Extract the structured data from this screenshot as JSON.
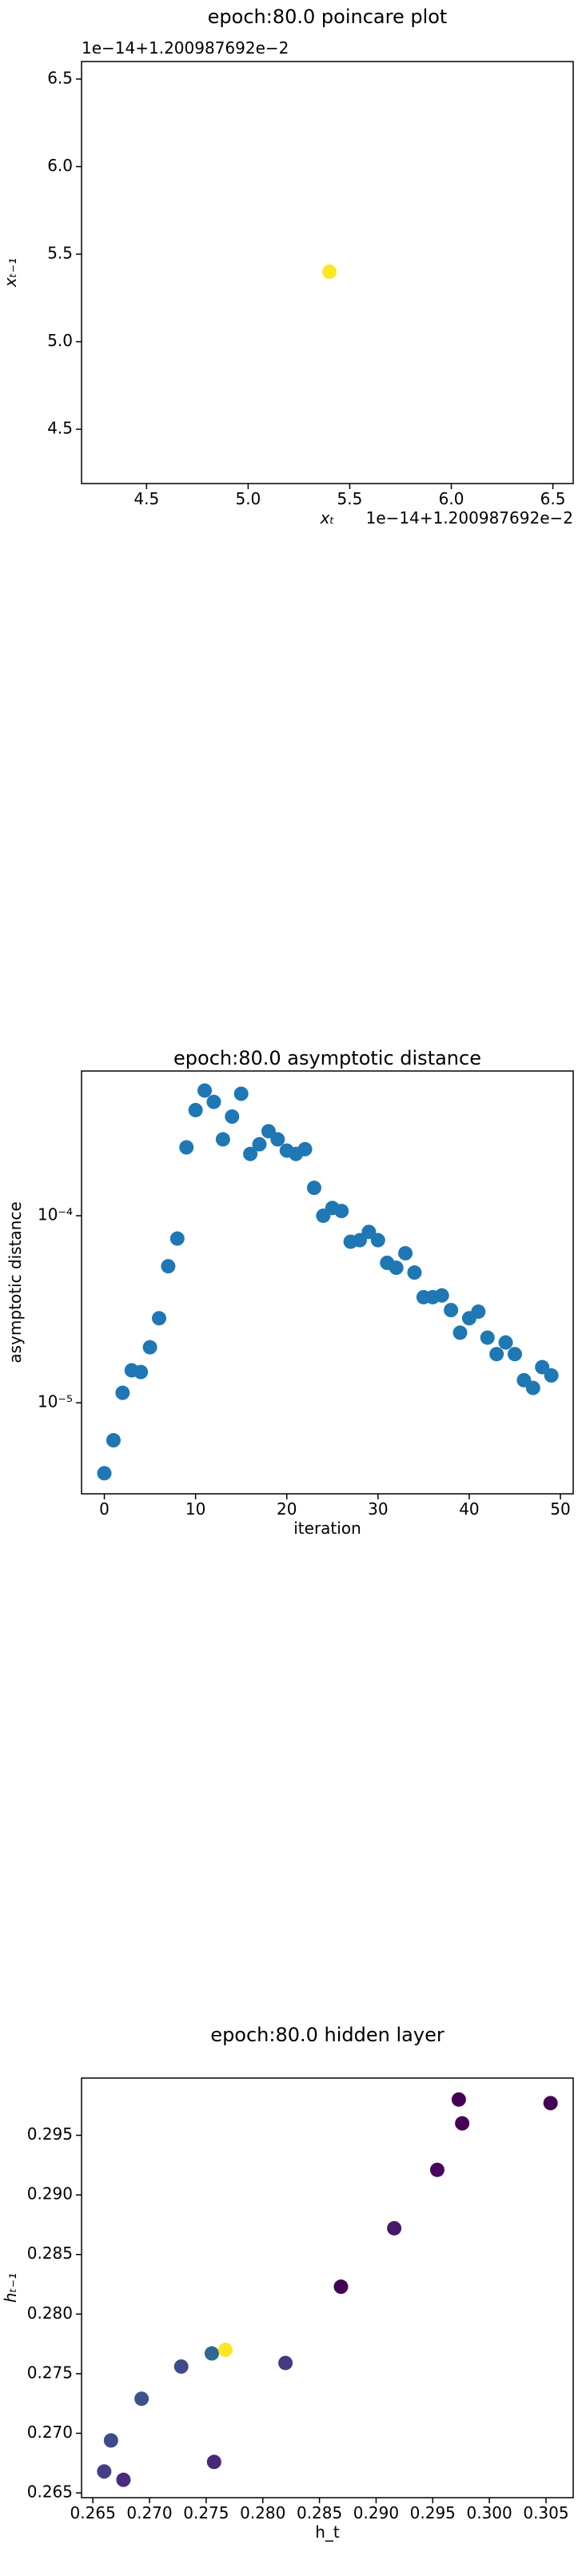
{
  "chart_data": [
    {
      "type": "scatter",
      "title": "epoch:80.0 poincare plot",
      "xlabel": "xₜ",
      "ylabel": "xₜ₋₁",
      "offset_text_x": "1e−14+1.200987692e−2",
      "offset_text_y": "1e−14+1.200987692e−2",
      "x": [
        5.4
      ],
      "y": [
        5.4
      ],
      "color": "#fde725",
      "xlim": [
        4.18,
        6.6
      ],
      "ylim": [
        4.19,
        6.6
      ],
      "xticks": [
        4.5,
        {
          "value": 5,
          "label": "5.0"
        },
        5.5,
        {
          "value": 6,
          "label": "6.0"
        },
        6.5
      ],
      "yticks": [
        4.5,
        {
          "value": 5,
          "label": "5.0"
        },
        5.5,
        {
          "value": 6,
          "label": "6.0"
        },
        6.5
      ]
    },
    {
      "type": "scatter",
      "title": "epoch:80.0 asymptotic distance",
      "xlabel": "iteration",
      "ylabel": "asymptotic distance",
      "yscale": "log",
      "color": "#1f77b4",
      "x": [
        0,
        1,
        2,
        3,
        4,
        5,
        6,
        7,
        8,
        9,
        10,
        11,
        12,
        13,
        14,
        15,
        16,
        17,
        18,
        19,
        20,
        21,
        22,
        23,
        24,
        25,
        26,
        27,
        28,
        29,
        30,
        31,
        32,
        33,
        34,
        35,
        36,
        37,
        38,
        39,
        40,
        41,
        42,
        43,
        44,
        45,
        46,
        47,
        48,
        49
      ],
      "y": [
        4.2e-06,
        6.3e-06,
        1.13e-05,
        1.49e-05,
        1.46e-05,
        1.98e-05,
        2.83e-05,
        5.37e-05,
        7.55e-05,
        0.000232,
        0.000367,
        0.000467,
        0.000406,
        0.000256,
        0.000339,
        0.000449,
        0.000214,
        0.000241,
        0.000283,
        0.000256,
        0.000223,
        0.000214,
        0.000227,
        0.000141,
        0.0001,
        0.00011,
        0.000106,
        7.26e-05,
        7.4e-05,
        8.19e-05,
        7.4e-05,
        5.6e-05,
        5.27e-05,
        6.3e-05,
        4.97e-05,
        3.67e-05,
        3.67e-05,
        3.75e-05,
        3.13e-05,
        2.37e-05,
        2.83e-05,
        3.07e-05,
        2.23e-05,
        1.82e-05,
        2.1e-05,
        1.82e-05,
        1.32e-05,
        1.2e-05,
        1.55e-05,
        1.4e-05
      ],
      "xlim": [
        -2.5,
        51.4
      ],
      "ylim": [
        3.26e-06,
        0.000594
      ],
      "xticks": [
        0,
        10,
        20,
        30,
        40,
        50
      ],
      "yticks": [
        {
          "value": 1e-05,
          "label": "10⁻⁵"
        },
        {
          "value": 0.0001,
          "label": "10⁻⁴"
        }
      ]
    },
    {
      "type": "scatter",
      "title": "epoch:80.0 hidden layer",
      "xlabel": "h_t",
      "ylabel": "hₜ₋₁",
      "x": [
        0.266,
        0.2666,
        0.2677,
        0.2693,
        0.2728,
        0.2755,
        0.2757,
        0.2767,
        0.282,
        0.2869,
        0.2916,
        0.2954,
        0.2973,
        0.2976,
        0.3054
      ],
      "y": [
        0.2668,
        0.2694,
        0.2661,
        0.2729,
        0.2756,
        0.2767,
        0.2676,
        0.277,
        0.2759,
        0.2823,
        0.2872,
        0.2921,
        0.298,
        0.296,
        0.2977
      ],
      "colors": [
        "#433e85",
        "#3e4a89",
        "#472d7b",
        "#3b528b",
        "#3e4a89",
        "#31688e",
        "#482878",
        "#fde725",
        "#443983",
        "#440154",
        "#48186a",
        "#46085c",
        "#440154",
        "#450457",
        "#440154"
      ],
      "xlim": [
        0.264,
        0.3074
      ],
      "ylim": [
        0.2646,
        0.2998
      ],
      "xticks": [
        0.265,
        {
          "value": 0.27,
          "label": "0.270"
        },
        0.275,
        {
          "value": 0.28,
          "label": "0.280"
        },
        0.285,
        {
          "value": 0.29,
          "label": "0.290"
        },
        0.295,
        {
          "value": 0.3,
          "label": "0.300"
        },
        0.305
      ],
      "yticks": [
        0.265,
        {
          "value": 0.27,
          "label": "0.270"
        },
        0.275,
        {
          "value": 0.28,
          "label": "0.280"
        },
        0.285,
        {
          "value": 0.29,
          "label": "0.290"
        },
        0.295
      ]
    }
  ]
}
